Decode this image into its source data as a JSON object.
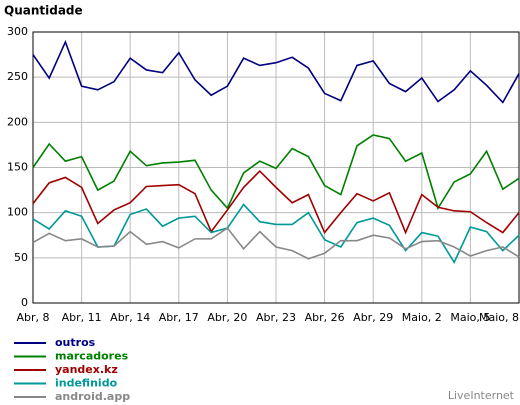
{
  "chart_data": {
    "type": "line",
    "title": "Quantidade",
    "watermark": "LiveInternet",
    "categories": [
      "Abr, 8",
      null,
      null,
      "Abr, 11",
      null,
      null,
      "Abr, 14",
      null,
      null,
      "Abr, 17",
      null,
      null,
      "Abr, 20",
      null,
      null,
      "Abr, 23",
      null,
      null,
      "Abr, 26",
      null,
      null,
      "Abr, 29",
      null,
      null,
      "Maio, 2",
      null,
      null,
      "Maio, 5",
      null,
      null,
      "Maio, 8"
    ],
    "ylim": [
      0,
      300
    ],
    "yticks": [
      0,
      50,
      100,
      150,
      200,
      250,
      300
    ],
    "grid": true,
    "series": [
      {
        "name": "outros",
        "color": "#000080",
        "values": [
          275,
          249,
          289,
          240,
          236,
          245,
          271,
          258,
          255,
          277,
          247,
          230,
          240,
          271,
          263,
          266,
          272,
          260,
          232,
          224,
          263,
          268,
          243,
          234,
          249,
          223,
          236,
          257,
          241,
          222,
          254
        ]
      },
      {
        "name": "marcadores",
        "color": "#008000",
        "values": [
          150,
          176,
          157,
          162,
          125,
          135,
          168,
          152,
          155,
          156,
          158,
          125,
          105,
          144,
          157,
          149,
          171,
          162,
          130,
          120,
          174,
          186,
          182,
          157,
          166,
          105,
          134,
          143,
          168,
          126,
          138
        ]
      },
      {
        "name": "yandex.kz",
        "color": "#a00000",
        "values": [
          110,
          133,
          139,
          128,
          88,
          103,
          111,
          129,
          130,
          131,
          121,
          79,
          103,
          128,
          146,
          128,
          111,
          120,
          78,
          100,
          121,
          113,
          122,
          78,
          120,
          106,
          102,
          101,
          89,
          78,
          100
        ]
      },
      {
        "name": "indefinido",
        "color": "#009999",
        "values": [
          93,
          82,
          102,
          96,
          62,
          63,
          98,
          104,
          85,
          94,
          96,
          78,
          83,
          109,
          90,
          87,
          87,
          100,
          70,
          62,
          89,
          94,
          86,
          58,
          78,
          74,
          45,
          84,
          79,
          58,
          75
        ]
      },
      {
        "name": "android.app",
        "color": "#888888",
        "values": [
          67,
          77,
          69,
          71,
          62,
          63,
          79,
          65,
          68,
          61,
          71,
          71,
          83,
          60,
          79,
          62,
          58,
          49,
          55,
          69,
          69,
          75,
          72,
          60,
          68,
          69,
          62,
          52,
          58,
          62,
          51
        ]
      }
    ]
  }
}
